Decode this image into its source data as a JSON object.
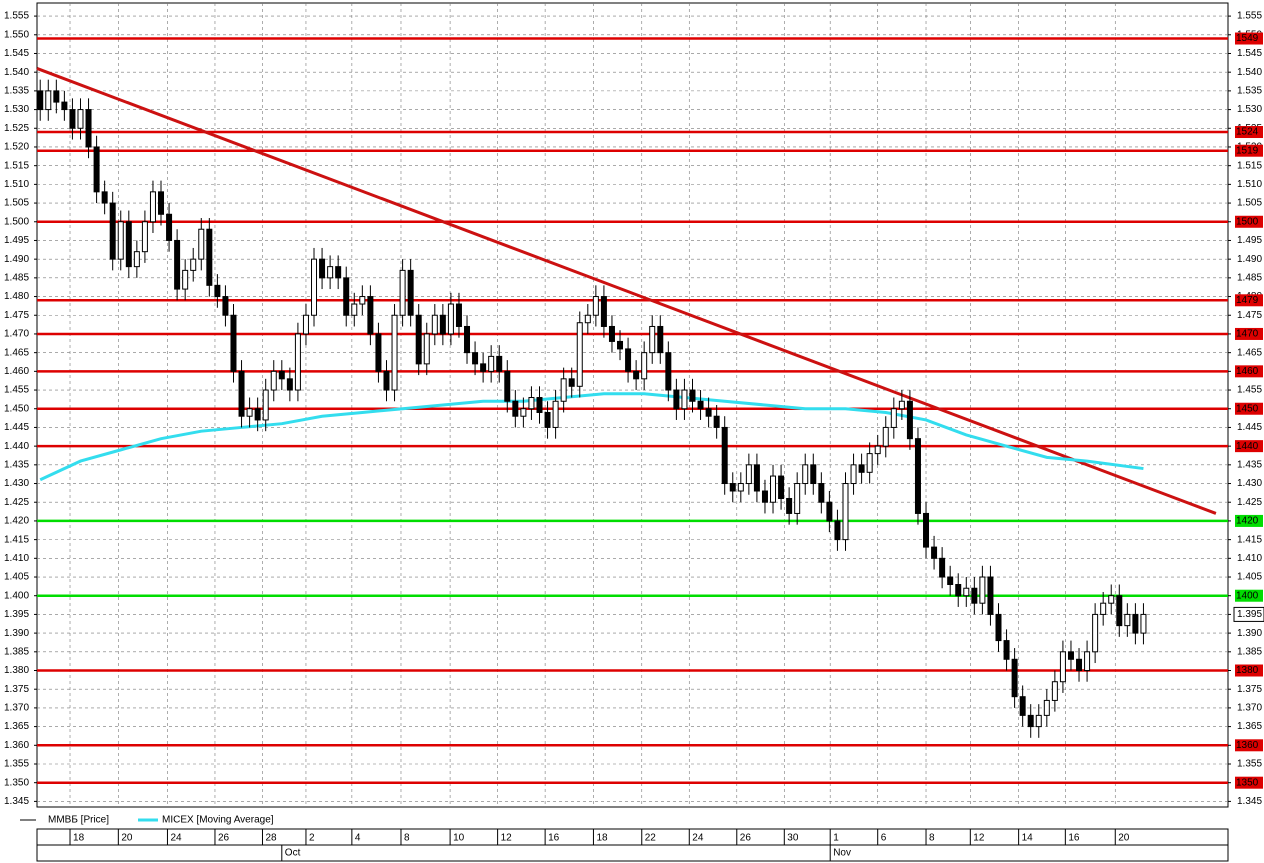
{
  "chart_data": {
    "type": "candlestick",
    "series": [
      {
        "name": "ММВБ [Price]",
        "color": "#000000",
        "open": [
          1.535,
          1.53,
          1.535,
          1.532,
          1.53,
          1.525,
          1.53,
          1.52,
          1.508,
          1.505,
          1.49,
          1.5,
          1.488,
          1.492,
          1.5,
          1.508,
          1.502,
          1.495,
          1.482,
          1.487,
          1.49,
          1.498,
          1.483,
          1.48,
          1.475,
          1.46,
          1.448,
          1.45,
          1.447,
          1.455,
          1.46,
          1.458,
          1.455,
          1.47,
          1.475,
          1.49,
          1.485,
          1.488,
          1.485,
          1.475,
          1.478,
          1.48,
          1.47,
          1.46,
          1.455,
          1.475,
          1.487,
          1.475,
          1.462,
          1.47,
          1.475,
          1.47,
          1.478,
          1.472,
          1.465,
          1.462,
          1.46,
          1.464,
          1.46,
          1.452,
          1.448,
          1.45,
          1.453,
          1.449,
          1.445,
          1.452,
          1.458,
          1.456,
          1.473,
          1.475,
          1.48,
          1.472,
          1.468,
          1.466,
          1.46,
          1.458,
          1.465,
          1.472,
          1.465,
          1.455,
          1.45,
          1.455,
          1.452,
          1.45,
          1.448,
          1.445,
          1.43,
          1.428,
          1.43,
          1.435,
          1.428,
          1.425,
          1.432,
          1.426,
          1.422,
          1.43,
          1.435,
          1.43,
          1.425,
          1.42,
          1.415,
          1.43,
          1.435,
          1.433,
          1.438,
          1.44,
          1.445,
          1.45,
          1.452,
          1.442,
          1.422,
          1.413,
          1.41,
          1.405,
          1.403,
          1.4,
          1.402,
          1.398,
          1.405,
          1.395,
          1.388,
          1.383,
          1.373,
          1.368,
          1.365,
          1.368,
          1.372,
          1.377,
          1.385,
          1.383,
          1.38,
          1.385,
          1.395,
          1.398,
          1.4,
          1.392,
          1.395,
          1.39
        ],
        "high": [
          1.538,
          1.538,
          1.538,
          1.535,
          1.533,
          1.533,
          1.533,
          1.523,
          1.511,
          1.508,
          1.503,
          1.503,
          1.495,
          1.503,
          1.511,
          1.511,
          1.505,
          1.498,
          1.49,
          1.493,
          1.501,
          1.501,
          1.486,
          1.483,
          1.478,
          1.463,
          1.453,
          1.453,
          1.458,
          1.463,
          1.463,
          1.461,
          1.473,
          1.478,
          1.493,
          1.493,
          1.491,
          1.491,
          1.488,
          1.481,
          1.483,
          1.483,
          1.473,
          1.463,
          1.478,
          1.49,
          1.49,
          1.478,
          1.473,
          1.478,
          1.478,
          1.481,
          1.481,
          1.475,
          1.468,
          1.465,
          1.467,
          1.467,
          1.463,
          1.455,
          1.453,
          1.456,
          1.456,
          1.452,
          1.455,
          1.461,
          1.461,
          1.476,
          1.478,
          1.483,
          1.483,
          1.475,
          1.471,
          1.469,
          1.463,
          1.468,
          1.475,
          1.475,
          1.468,
          1.458,
          1.458,
          1.458,
          1.455,
          1.453,
          1.451,
          1.448,
          1.433,
          1.433,
          1.438,
          1.438,
          1.431,
          1.435,
          1.435,
          1.429,
          1.433,
          1.438,
          1.438,
          1.433,
          1.428,
          1.423,
          1.433,
          1.438,
          1.438,
          1.441,
          1.443,
          1.448,
          1.453,
          1.455,
          1.455,
          1.445,
          1.425,
          1.416,
          1.413,
          1.408,
          1.406,
          1.405,
          1.405,
          1.408,
          1.408,
          1.398,
          1.391,
          1.386,
          1.376,
          1.371,
          1.371,
          1.375,
          1.38,
          1.388,
          1.388,
          1.386,
          1.388,
          1.398,
          1.401,
          1.403,
          1.403,
          1.398,
          1.398,
          1.398
        ],
        "low": [
          1.527,
          1.527,
          1.529,
          1.527,
          1.522,
          1.522,
          1.517,
          1.505,
          1.502,
          1.487,
          1.487,
          1.485,
          1.485,
          1.489,
          1.497,
          1.499,
          1.492,
          1.479,
          1.479,
          1.484,
          1.487,
          1.48,
          1.477,
          1.472,
          1.457,
          1.445,
          1.445,
          1.444,
          1.444,
          1.452,
          1.455,
          1.452,
          1.452,
          1.467,
          1.472,
          1.482,
          1.482,
          1.482,
          1.472,
          1.472,
          1.475,
          1.467,
          1.457,
          1.452,
          1.452,
          1.472,
          1.472,
          1.459,
          1.459,
          1.467,
          1.467,
          1.467,
          1.469,
          1.462,
          1.459,
          1.457,
          1.457,
          1.457,
          1.449,
          1.445,
          1.445,
          1.447,
          1.446,
          1.442,
          1.442,
          1.449,
          1.453,
          1.453,
          1.47,
          1.472,
          1.469,
          1.465,
          1.463,
          1.457,
          1.455,
          1.455,
          1.462,
          1.462,
          1.452,
          1.447,
          1.447,
          1.449,
          1.447,
          1.445,
          1.442,
          1.427,
          1.425,
          1.425,
          1.427,
          1.425,
          1.422,
          1.422,
          1.423,
          1.419,
          1.419,
          1.427,
          1.427,
          1.422,
          1.417,
          1.412,
          1.412,
          1.427,
          1.43,
          1.43,
          1.435,
          1.437,
          1.442,
          1.447,
          1.439,
          1.419,
          1.41,
          1.407,
          1.402,
          1.4,
          1.397,
          1.397,
          1.395,
          1.395,
          1.392,
          1.385,
          1.38,
          1.37,
          1.365,
          1.362,
          1.362,
          1.365,
          1.369,
          1.374,
          1.38,
          1.377,
          1.377,
          1.382,
          1.392,
          1.395,
          1.389,
          1.389,
          1.387,
          1.387
        ],
        "close": [
          1.53,
          1.535,
          1.532,
          1.53,
          1.525,
          1.53,
          1.52,
          1.508,
          1.505,
          1.49,
          1.5,
          1.488,
          1.492,
          1.5,
          1.508,
          1.502,
          1.495,
          1.482,
          1.487,
          1.49,
          1.498,
          1.483,
          1.48,
          1.475,
          1.46,
          1.448,
          1.45,
          1.447,
          1.455,
          1.46,
          1.458,
          1.455,
          1.47,
          1.475,
          1.49,
          1.485,
          1.488,
          1.485,
          1.475,
          1.478,
          1.48,
          1.47,
          1.46,
          1.455,
          1.475,
          1.487,
          1.475,
          1.462,
          1.47,
          1.475,
          1.47,
          1.478,
          1.472,
          1.465,
          1.462,
          1.46,
          1.464,
          1.46,
          1.452,
          1.448,
          1.45,
          1.453,
          1.449,
          1.445,
          1.452,
          1.458,
          1.456,
          1.473,
          1.475,
          1.48,
          1.472,
          1.468,
          1.466,
          1.46,
          1.458,
          1.465,
          1.472,
          1.465,
          1.455,
          1.45,
          1.455,
          1.452,
          1.45,
          1.448,
          1.445,
          1.43,
          1.428,
          1.43,
          1.435,
          1.428,
          1.425,
          1.432,
          1.426,
          1.422,
          1.43,
          1.435,
          1.43,
          1.425,
          1.42,
          1.415,
          1.43,
          1.435,
          1.433,
          1.438,
          1.44,
          1.445,
          1.45,
          1.452,
          1.442,
          1.422,
          1.413,
          1.41,
          1.405,
          1.403,
          1.4,
          1.402,
          1.398,
          1.405,
          1.395,
          1.388,
          1.383,
          1.373,
          1.368,
          1.365,
          1.368,
          1.372,
          1.377,
          1.385,
          1.383,
          1.38,
          1.385,
          1.395,
          1.398,
          1.4,
          1.392,
          1.395,
          1.39,
          1.395
        ]
      },
      {
        "name": "MICEX [Moving Average]",
        "color": "#33ddee",
        "x": [
          0,
          5,
          10,
          15,
          20,
          25,
          30,
          35,
          40,
          45,
          50,
          55,
          60,
          65,
          70,
          75,
          80,
          85,
          90,
          95,
          100,
          105,
          110,
          115,
          120,
          125,
          130,
          137
        ],
        "values": [
          1.431,
          1.436,
          1.439,
          1.442,
          1.444,
          1.445,
          1.446,
          1.448,
          1.449,
          1.45,
          1.451,
          1.452,
          1.452,
          1.453,
          1.454,
          1.454,
          1.453,
          1.452,
          1.451,
          1.45,
          1.45,
          1.449,
          1.447,
          1.443,
          1.44,
          1.437,
          1.436,
          1.434
        ]
      }
    ],
    "trendline": {
      "x": [
        -0.4,
        146
      ],
      "values": [
        1.541,
        1.422
      ],
      "color": "#cc1111"
    },
    "levels": [
      {
        "value": 1.549,
        "label": "1549",
        "color": "#dd0000"
      },
      {
        "value": 1.524,
        "label": "1524",
        "color": "#dd0000"
      },
      {
        "value": 1.519,
        "label": "1519",
        "color": "#dd0000"
      },
      {
        "value": 1.5,
        "label": "1500",
        "color": "#dd0000"
      },
      {
        "value": 1.479,
        "label": "1479",
        "color": "#dd0000"
      },
      {
        "value": 1.47,
        "label": "1470",
        "color": "#dd0000"
      },
      {
        "value": 1.46,
        "label": "1460",
        "color": "#dd0000"
      },
      {
        "value": 1.45,
        "label": "1450",
        "color": "#dd0000"
      },
      {
        "value": 1.44,
        "label": "1440",
        "color": "#dd0000"
      },
      {
        "value": 1.42,
        "label": "1420",
        "color": "#00dd00"
      },
      {
        "value": 1.4,
        "label": "1400",
        "color": "#00dd00"
      },
      {
        "value": 1.38,
        "label": "1380",
        "color": "#dd0000"
      },
      {
        "value": 1.36,
        "label": "1360",
        "color": "#dd0000"
      },
      {
        "value": 1.35,
        "label": "1350",
        "color": "#dd0000"
      }
    ],
    "last_price": 1.395,
    "ylim": [
      1.3435,
      1.5585
    ],
    "yticks": [
      1.345,
      {
        "value": 1.35,
        "label": "1.350"
      },
      1.355,
      {
        "value": 1.36,
        "label": "1.360"
      },
      1.365,
      {
        "value": 1.37,
        "label": "1.370"
      },
      1.375,
      {
        "value": 1.38,
        "label": "1.380"
      },
      1.385,
      {
        "value": 1.39,
        "label": "1.390"
      },
      1.395,
      {
        "value": 1.4,
        "label": "1.400"
      },
      1.405,
      {
        "value": 1.41,
        "label": "1.410"
      },
      1.415,
      {
        "value": 1.42,
        "label": "1.420"
      },
      1.425,
      {
        "value": 1.43,
        "label": "1.430"
      },
      1.435,
      {
        "value": 1.44,
        "label": "1.440"
      },
      1.445,
      {
        "value": 1.45,
        "label": "1.450"
      },
      1.455,
      {
        "value": 1.46,
        "label": "1.460"
      },
      1.465,
      {
        "value": 1.47,
        "label": "1.470"
      },
      1.475,
      {
        "value": 1.48,
        "label": "1.480"
      },
      1.485,
      {
        "value": 1.49,
        "label": "1.490"
      },
      1.495,
      {
        "value": 1.5,
        "label": "1.500"
      },
      1.505,
      {
        "value": 1.51,
        "label": "1.510"
      },
      1.515,
      {
        "value": 1.52,
        "label": "1.520"
      },
      1.525,
      {
        "value": 1.53,
        "label": "1.530"
      },
      1.535,
      {
        "value": 1.54,
        "label": "1.540"
      },
      1.545,
      {
        "value": 1.55,
        "label": "1.550"
      },
      1.555
    ],
    "xlim": [
      -0.4,
      147.5
    ],
    "xticks": [
      {
        "value": 3.7,
        "label": "18"
      },
      {
        "value": 9.7,
        "label": "20"
      },
      {
        "value": 15.8,
        "label": "24"
      },
      {
        "value": 21.7,
        "label": "26"
      },
      {
        "value": 27.6,
        "label": "28"
      },
      {
        "value": 33,
        "label": "2"
      },
      {
        "value": 38.7,
        "label": "4"
      },
      {
        "value": 44.8,
        "label": "8"
      },
      {
        "value": 50.9,
        "label": "10"
      },
      {
        "value": 56.8,
        "label": "12"
      },
      {
        "value": 62.7,
        "label": "16"
      },
      {
        "value": 68.7,
        "label": "18"
      },
      {
        "value": 74.7,
        "label": "22"
      },
      {
        "value": 80.6,
        "label": "24"
      },
      {
        "value": 86.5,
        "label": "26"
      },
      {
        "value": 92.4,
        "label": "30"
      },
      {
        "value": 98.1,
        "label": "1"
      },
      {
        "value": 104,
        "label": "6"
      },
      {
        "value": 110,
        "label": "8"
      },
      {
        "value": 115.5,
        "label": "12"
      },
      {
        "value": 121.5,
        "label": "14"
      },
      {
        "value": 127.3,
        "label": "16"
      },
      {
        "value": 133.5,
        "label": "20"
      }
    ],
    "months": [
      {
        "value": 30,
        "label": "Oct"
      },
      {
        "value": 98.1,
        "label": "Nov"
      }
    ],
    "grid": true
  }
}
